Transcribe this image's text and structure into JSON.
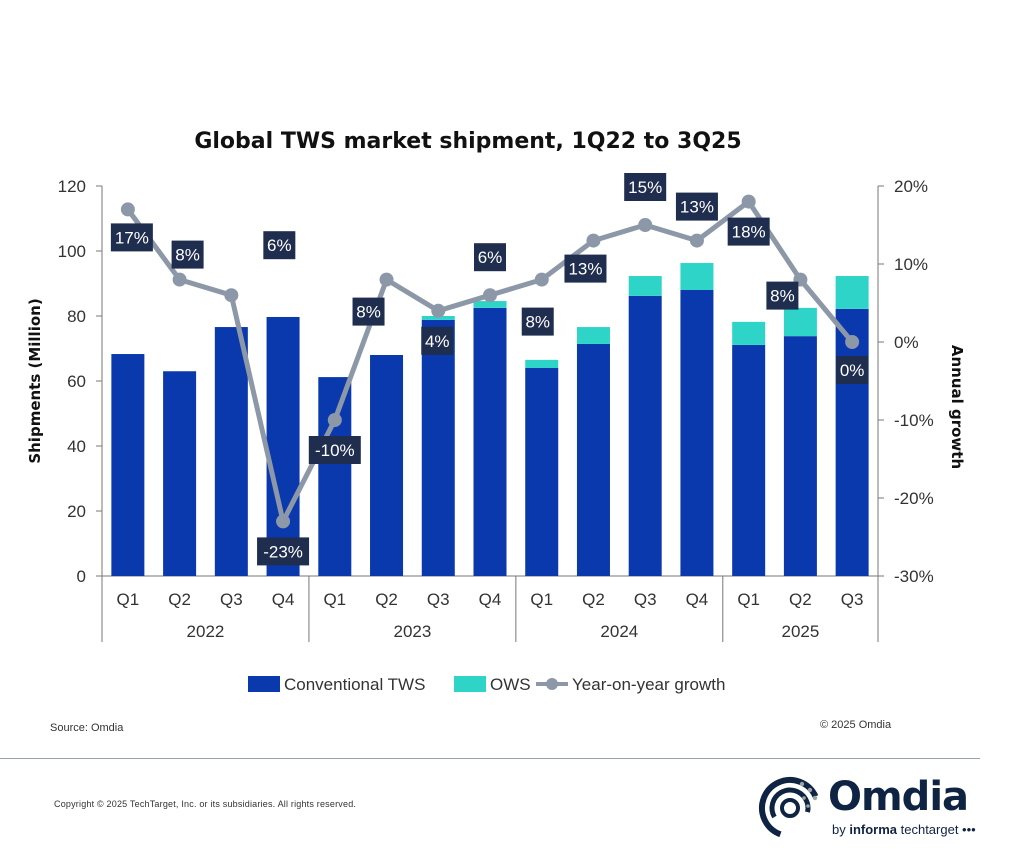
{
  "chart_data": {
    "type": "bar",
    "stacked": true,
    "title": "Global TWS market shipment, 1Q22 to 3Q25",
    "ylabel": "Shipments (Million)",
    "y2label": "Annual growth",
    "ylim": [
      0,
      120
    ],
    "yticks": [
      0,
      20,
      40,
      60,
      80,
      100,
      120
    ],
    "y2lim": [
      -30,
      20
    ],
    "y2ticks": [
      "-30%",
      "-20%",
      "-10%",
      "0%",
      "10%",
      "20%"
    ],
    "y2tick_values": [
      -30,
      -20,
      -10,
      0,
      10,
      20
    ],
    "categories": [
      "Q1",
      "Q2",
      "Q3",
      "Q4",
      "Q1",
      "Q2",
      "Q3",
      "Q4",
      "Q1",
      "Q2",
      "Q3",
      "Q4",
      "Q1",
      "Q2",
      "Q3"
    ],
    "groups": [
      {
        "label": "2022",
        "count": 4
      },
      {
        "label": "2023",
        "count": 4
      },
      {
        "label": "2024",
        "count": 4
      },
      {
        "label": "2025",
        "count": 3
      }
    ],
    "series": [
      {
        "name": "Conventional TWS",
        "type": "bar",
        "color": "#0a38ad",
        "values": [
          68.3,
          63.0,
          76.6,
          79.7,
          61.2,
          68.0,
          78.8,
          82.5,
          64.0,
          71.4,
          86.2,
          88.0,
          71.1,
          73.8,
          82.2
        ]
      },
      {
        "name": "OWS",
        "type": "bar",
        "color": "#2fd4c8",
        "values": [
          0,
          0,
          0,
          0,
          0,
          0,
          1.2,
          2.1,
          2.5,
          5.2,
          6.1,
          8.3,
          7.1,
          8.7,
          10.1
        ]
      },
      {
        "name": "Year-on-year growth",
        "type": "line",
        "axis": "right",
        "color": "#8c98a8",
        "values": [
          17,
          8,
          6,
          -23,
          -10,
          8,
          4,
          6,
          8,
          13,
          15,
          13,
          18,
          8,
          0
        ],
        "labels": [
          "17%",
          "8%",
          "6%",
          "-23%",
          "-10%",
          "8%",
          "4%",
          "6%",
          "8%",
          "13%",
          "15%",
          "13%",
          "18%",
          "8%",
          "0%"
        ]
      }
    ],
    "legend": "bottom",
    "grid": false
  },
  "source": "Source: Omdia",
  "chart_copyright": "© 2025 Omdia",
  "footer": {
    "copyright": "Copyright © 2025 TechTarget, Inc. or its subsidiaries. All rights reserved.",
    "logo_word": "Omdia",
    "logo_sub_prefix": "by ",
    "logo_sub_bold": "informa",
    "logo_sub_suffix": " techtarget •••"
  }
}
